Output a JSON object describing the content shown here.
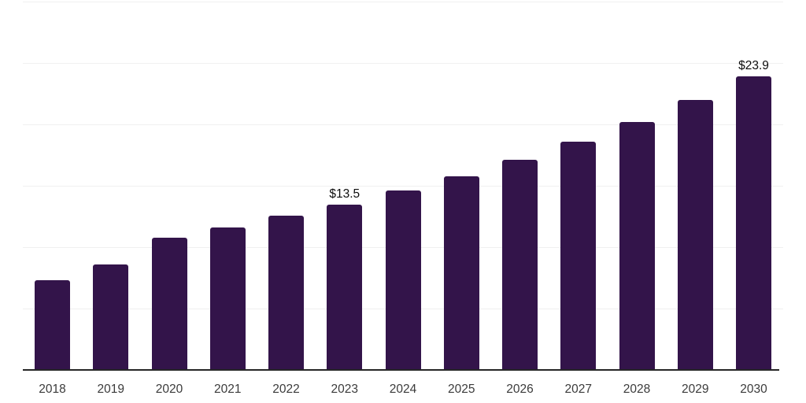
{
  "chart_data": {
    "type": "bar",
    "title": "",
    "xlabel": "",
    "ylabel": "",
    "categories": [
      "2018",
      "2019",
      "2020",
      "2021",
      "2022",
      "2023",
      "2024",
      "2025",
      "2026",
      "2027",
      "2028",
      "2029",
      "2030"
    ],
    "values": [
      7.3,
      8.6,
      10.8,
      11.6,
      12.6,
      13.5,
      14.6,
      15.8,
      17.1,
      18.6,
      20.2,
      22.0,
      23.9
    ],
    "data_labels": [
      null,
      null,
      null,
      null,
      null,
      "$13.5",
      null,
      null,
      null,
      null,
      null,
      null,
      "$23.9"
    ],
    "ylim": [
      0,
      30
    ],
    "gridline_step": 5,
    "grid": "horizontal-only",
    "y_tick_labels_visible": false,
    "legend": "none",
    "colors": {
      "bar_fill": "#33144a",
      "gridline": "#f0f0f0",
      "x_axis_line": "#262626",
      "x_tick_label": "#3b3b3b",
      "data_label": "#0d0d0d",
      "background": "#ffffff"
    }
  }
}
